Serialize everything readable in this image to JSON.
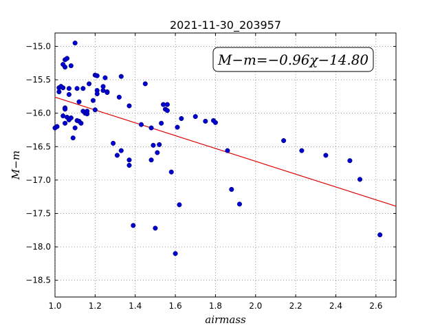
{
  "chart_data": {
    "type": "scatter",
    "title": "2021-11-30_203957",
    "xlabel": "airmass",
    "ylabel": "M−m",
    "xlim": [
      1.0,
      2.7
    ],
    "ylim": [
      -18.75,
      -14.8
    ],
    "y_inverted": false,
    "grid": true,
    "x_ticks": [
      1.0,
      1.2,
      1.4,
      1.6,
      1.8,
      2.0,
      2.2,
      2.4,
      2.6
    ],
    "x_tick_labels": [
      "1.0",
      "1.2",
      "1.4",
      "1.6",
      "1.8",
      "2.0",
      "2.2",
      "2.4",
      "2.6"
    ],
    "y_ticks": [
      -15.0,
      -15.5,
      -16.0,
      -16.5,
      -17.0,
      -17.5,
      -18.0,
      -18.5
    ],
    "y_tick_labels": [
      "−15.0",
      "−15.5",
      "−16.0",
      "−16.5",
      "−17.0",
      "−17.5",
      "−18.0",
      "−18.5"
    ],
    "point_color": "#0000cc",
    "fit_color": "#dd0000",
    "annotation": {
      "text": "M−m=−0.96χ−14.80",
      "position": "top-right"
    },
    "fit": {
      "slope": -0.96,
      "intercept": -14.8
    },
    "points": [
      [
        1.0,
        -16.22
      ],
      [
        1.01,
        -16.2
      ],
      [
        1.01,
        -16.2
      ],
      [
        1.02,
        -15.68
      ],
      [
        1.02,
        -15.62
      ],
      [
        1.03,
        -15.6
      ],
      [
        1.03,
        -15.6
      ],
      [
        1.04,
        -15.62
      ],
      [
        1.04,
        -15.27
      ],
      [
        1.05,
        -15.31
      ],
      [
        1.05,
        -15.2
      ],
      [
        1.06,
        -15.18
      ],
      [
        1.04,
        -16.04
      ],
      [
        1.05,
        -15.92
      ],
      [
        1.05,
        -15.94
      ],
      [
        1.05,
        -16.15
      ],
      [
        1.06,
        -16.06
      ],
      [
        1.07,
        -16.1
      ],
      [
        1.07,
        -15.63
      ],
      [
        1.07,
        -15.72
      ],
      [
        1.08,
        -15.29
      ],
      [
        1.08,
        -16.07
      ],
      [
        1.09,
        -16.37
      ],
      [
        1.1,
        -14.95
      ],
      [
        1.1,
        -16.22
      ],
      [
        1.11,
        -16.11
      ],
      [
        1.11,
        -15.63
      ],
      [
        1.12,
        -16.12
      ],
      [
        1.12,
        -15.83
      ],
      [
        1.13,
        -16.15
      ],
      [
        1.14,
        -15.63
      ],
      [
        1.14,
        -15.97
      ],
      [
        1.15,
        -16.0
      ],
      [
        1.16,
        -16.01
      ],
      [
        1.16,
        -15.97
      ],
      [
        1.17,
        -15.56
      ],
      [
        1.19,
        -15.81
      ],
      [
        1.2,
        -15.43
      ],
      [
        1.2,
        -15.95
      ],
      [
        1.21,
        -15.66
      ],
      [
        1.21,
        -15.71
      ],
      [
        1.21,
        -15.44
      ],
      [
        1.24,
        -15.66
      ],
      [
        1.24,
        -15.6
      ],
      [
        1.25,
        -15.47
      ],
      [
        1.26,
        -15.68
      ],
      [
        1.26,
        -15.69
      ],
      [
        1.29,
        -16.45
      ],
      [
        1.31,
        -16.63
      ],
      [
        1.32,
        -15.76
      ],
      [
        1.33,
        -15.45
      ],
      [
        1.33,
        -16.56
      ],
      [
        1.37,
        -15.89
      ],
      [
        1.37,
        -16.7
      ],
      [
        1.37,
        -16.78
      ],
      [
        1.39,
        -17.68
      ],
      [
        1.43,
        -16.17
      ],
      [
        1.45,
        -15.56
      ],
      [
        1.48,
        -16.7
      ],
      [
        1.48,
        -16.22
      ],
      [
        1.49,
        -16.48
      ],
      [
        1.5,
        -17.72
      ],
      [
        1.51,
        -16.59
      ],
      [
        1.52,
        -16.47
      ],
      [
        1.53,
        -16.15
      ],
      [
        1.54,
        -15.87
      ],
      [
        1.55,
        -15.94
      ],
      [
        1.56,
        -15.96
      ],
      [
        1.56,
        -15.87
      ],
      [
        1.58,
        -16.88
      ],
      [
        1.6,
        -18.1
      ],
      [
        1.61,
        -16.21
      ],
      [
        1.62,
        -17.37
      ],
      [
        1.63,
        -16.08
      ],
      [
        1.7,
        -16.05
      ],
      [
        1.75,
        -16.12
      ],
      [
        1.79,
        -16.11
      ],
      [
        1.8,
        -16.14
      ],
      [
        1.86,
        -16.56
      ],
      [
        1.88,
        -17.14
      ],
      [
        1.92,
        -17.36
      ],
      [
        2.14,
        -16.41
      ],
      [
        2.23,
        -16.56
      ],
      [
        2.35,
        -16.63
      ],
      [
        2.47,
        -16.71
      ],
      [
        2.52,
        -16.99
      ],
      [
        2.62,
        -17.82
      ]
    ]
  }
}
